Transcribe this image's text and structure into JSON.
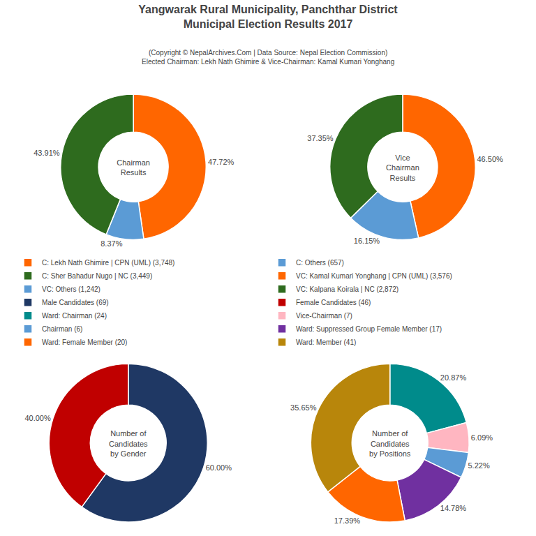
{
  "title": "Yangwarak Rural Municipality, Panchthar District\nMunicipal Election Results 2017",
  "subtitle": "(Copyright © NepalArchives.Com | Data Source: Nepal Election Commission)\nElected Chairman: Lekh Nath Ghimire & Vice-Chairman: Kamal Kumari Yonghang",
  "legend": "center",
  "chart_data": [
    {
      "type": "pie",
      "title": "Chairman\nResults",
      "categories": [
        "C: Lekh Nath Ghimire | CPN (UML) (3,748)",
        "C: Others (657)",
        "C: Sher Bahadur Nugo | NC (3,449)"
      ],
      "values": [
        47.72,
        8.37,
        43.91
      ],
      "value_labels": [
        "47.72%",
        "8.37%",
        "43.91%"
      ],
      "colors": [
        "#FF6600",
        "#5B9BD5",
        "#2E6B1E"
      ],
      "data_labels": true
    },
    {
      "type": "pie",
      "title": "Vice\nChairman\nResults",
      "categories": [
        "VC: Kamal Kumari Yonghang | CPN (UML) (3,576)",
        "VC: Others (1,242)",
        "VC: Kalpana Koirala | NC (2,872)"
      ],
      "values": [
        46.5,
        16.15,
        37.35
      ],
      "value_labels": [
        "46.50%",
        "16.15%",
        "37.35%"
      ],
      "colors": [
        "#FF6600",
        "#5B9BD5",
        "#2E6B1E"
      ],
      "data_labels": true
    },
    {
      "type": "pie",
      "title": "Number of\nCandidates\nby Gender",
      "categories": [
        "Male Candidates (69)",
        "Female Candidates (46)"
      ],
      "values": [
        60.0,
        40.0
      ],
      "value_labels": [
        "60.00%",
        "40.00%"
      ],
      "colors": [
        "#1F3864",
        "#C00000"
      ],
      "data_labels": true
    },
    {
      "type": "pie",
      "title": "Number of\nCandidates\nby Positions",
      "categories": [
        "Ward: Chairman (24)",
        "Vice-Chairman (7)",
        "Chairman (6)",
        "Ward: Suppressed Group Female Member (17)",
        "Ward: Female Member (20)",
        "Ward: Member (41)"
      ],
      "values": [
        20.87,
        6.09,
        5.22,
        14.78,
        17.39,
        35.65
      ],
      "value_labels": [
        "20.87%",
        "6.09%",
        "5.22%",
        "14.78%",
        "17.39%",
        "35.65%"
      ],
      "colors": [
        "#008B8B",
        "#FFB6C1",
        "#5B9BD5",
        "#7030A0",
        "#FF6600",
        "#B8860B"
      ],
      "data_labels": true
    }
  ]
}
